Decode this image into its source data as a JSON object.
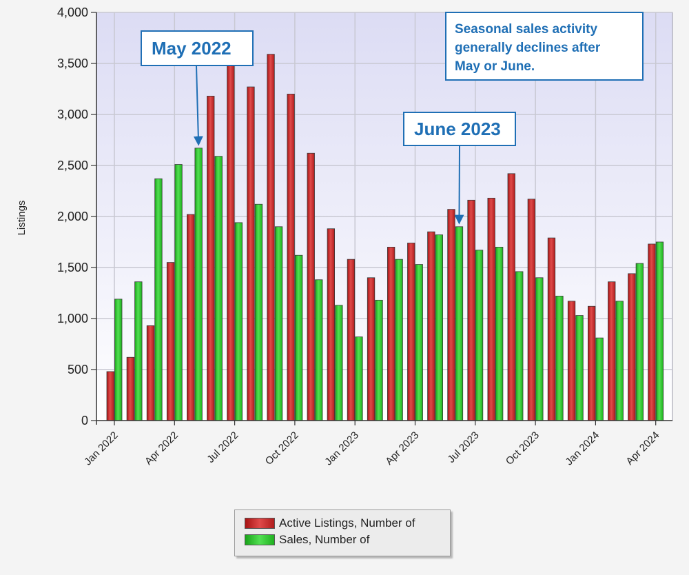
{
  "chart_data": {
    "type": "bar",
    "title": "",
    "xlabel": "",
    "ylabel": "Listings",
    "ylim": [
      0,
      4000
    ],
    "yticks": [
      "0",
      "500",
      "1,000",
      "1,500",
      "2,000",
      "2,500",
      "3,000",
      "3,500",
      "4,000"
    ],
    "ytick_values": [
      0,
      500,
      1000,
      1500,
      2000,
      2500,
      3000,
      3500,
      4000
    ],
    "grid": true,
    "legend_position": "bottom-center",
    "months": [
      "Jan 2022",
      "Feb 2022",
      "Mar 2022",
      "Apr 2022",
      "May 2022",
      "Jun 2022",
      "Jul 2022",
      "Aug 2022",
      "Sep 2022",
      "Oct 2022",
      "Nov 2022",
      "Dec 2022",
      "Jan 2023",
      "Feb 2023",
      "Mar 2023",
      "Apr 2023",
      "May 2023",
      "Jun 2023",
      "Jul 2023",
      "Aug 2023",
      "Sep 2023",
      "Oct 2023",
      "Nov 2023",
      "Dec 2023",
      "Jan 2024",
      "Feb 2024",
      "Mar 2024",
      "Apr 2024"
    ],
    "x_tick_labels": [
      {
        "index": 0,
        "label": "Jan 2022"
      },
      {
        "index": 3,
        "label": "Apr 2022"
      },
      {
        "index": 6,
        "label": "Jul 2022"
      },
      {
        "index": 9,
        "label": "Oct 2022"
      },
      {
        "index": 12,
        "label": "Jan 2023"
      },
      {
        "index": 15,
        "label": "Apr 2023"
      },
      {
        "index": 18,
        "label": "Jul 2023"
      },
      {
        "index": 21,
        "label": "Oct 2023"
      },
      {
        "index": 24,
        "label": "Jan 2024"
      },
      {
        "index": 27,
        "label": "Apr 2024"
      }
    ],
    "series": [
      {
        "name": "Active Listings, Number of",
        "color": "#d42a2a",
        "values": [
          480,
          620,
          930,
          1550,
          2020,
          3180,
          3600,
          3270,
          3590,
          3200,
          2620,
          1880,
          1580,
          1400,
          1700,
          1740,
          1850,
          2070,
          2160,
          2180,
          2420,
          2170,
          1790,
          1170,
          1120,
          1360,
          1440,
          1730
        ]
      },
      {
        "name": "Sales, Number of",
        "color": "#2ecc2e",
        "values": [
          1190,
          1360,
          2370,
          2510,
          2670,
          2590,
          1940,
          2120,
          1900,
          1620,
          1380,
          1130,
          820,
          1180,
          1580,
          1530,
          1820,
          1900,
          1670,
          1700,
          1460,
          1400,
          1220,
          1030,
          810,
          1170,
          1540,
          1750
        ]
      }
    ],
    "annotations": [
      {
        "id": "may",
        "text": "May 2022",
        "target_month": "May 2022",
        "target_series": 1
      },
      {
        "id": "june",
        "text": "June 2023",
        "target_month": "Jun 2023",
        "target_series": 1
      },
      {
        "id": "seasonal",
        "text": "Seasonal sales activity generally declines after May or June."
      }
    ]
  },
  "legend": {
    "items": [
      {
        "label": "Active Listings, Number of",
        "color": "#d42a2a"
      },
      {
        "label": "Sales, Number of",
        "color": "#2ecc2e"
      }
    ]
  },
  "annotations": {
    "may_label": "May 2022",
    "june_label": "June 2023",
    "seasonal_lines": [
      "Seasonal sales activity",
      "generally declines after",
      "May or June."
    ]
  },
  "colors": {
    "plot_bg_top": "#dcdcf4",
    "plot_bg_bottom": "#ffffff",
    "annotation": "#1f6fb5"
  }
}
